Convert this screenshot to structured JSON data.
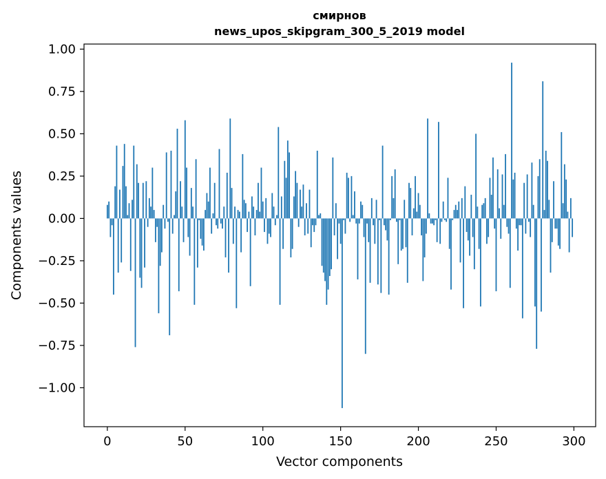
{
  "chart_data": {
    "type": "bar",
    "title_line1": "смирнов",
    "title_line2": "news_upos_skipgram_300_5_2019 model",
    "xlabel": "Vector components",
    "ylabel": "Components values",
    "xlim": [
      -15,
      314
    ],
    "ylim": [
      -1.23,
      1.03
    ],
    "xticks": [
      0,
      50,
      100,
      150,
      200,
      250,
      300
    ],
    "xtick_labels": [
      "0",
      "50",
      "100",
      "150",
      "200",
      "250",
      "300"
    ],
    "yticks": [
      1.0,
      0.75,
      0.5,
      0.25,
      0.0,
      -0.25,
      -0.5,
      -0.75,
      -1.0
    ],
    "ytick_labels": [
      "1.00",
      "0.75",
      "0.50",
      "0.25",
      "0.00",
      "−0.25",
      "−0.50",
      "−0.75",
      "−1.00"
    ],
    "bar_color": "#1f77b4",
    "grid": false,
    "x_start": 0,
    "values": [
      0.08,
      0.1,
      -0.11,
      -0.04,
      -0.45,
      0.19,
      0.43,
      -0.32,
      0.17,
      -0.26,
      0.31,
      0.44,
      0.19,
      0.02,
      0.09,
      -0.31,
      0.11,
      0.43,
      -0.76,
      0.32,
      0.21,
      -0.35,
      -0.41,
      0.21,
      -0.29,
      0.22,
      -0.05,
      0.12,
      0.07,
      0.3,
      0.05,
      -0.14,
      -0.05,
      -0.56,
      -0.28,
      -0.2,
      0.08,
      -0.06,
      0.39,
      -0.02,
      -0.69,
      0.4,
      -0.09,
      0.02,
      0.16,
      0.53,
      -0.43,
      0.22,
      0.07,
      -0.14,
      0.58,
      0.3,
      -0.11,
      -0.22,
      0.18,
      0.07,
      -0.51,
      0.35,
      -0.29,
      -0.01,
      -0.12,
      -0.16,
      -0.19,
      0.05,
      0.15,
      0.1,
      0.3,
      -0.09,
      0.03,
      0.21,
      -0.04,
      -0.06,
      0.41,
      -0.03,
      -0.06,
      0.07,
      -0.23,
      0.27,
      -0.32,
      0.59,
      0.18,
      -0.15,
      0.07,
      -0.53,
      0.05,
      0.04,
      -0.2,
      0.38,
      0.11,
      0.09,
      -0.08,
      0.04,
      -0.4,
      0.13,
      0.07,
      -0.1,
      0.05,
      0.21,
      0.04,
      0.3,
      0.1,
      -0.08,
      0.12,
      -0.15,
      -0.09,
      -0.11,
      0.15,
      0.07,
      -0.04,
      0.02,
      0.54,
      -0.51,
      0.13,
      -0.18,
      0.34,
      0.24,
      0.46,
      0.39,
      -0.23,
      -0.18,
      0.13,
      0.28,
      0.21,
      -0.05,
      0.17,
      0.07,
      0.2,
      -0.1,
      0.09,
      -0.09,
      0.17,
      -0.17,
      -0.04,
      -0.08,
      -0.04,
      0.4,
      0.02,
      0.03,
      -0.28,
      -0.32,
      -0.37,
      -0.51,
      -0.42,
      -0.34,
      -0.3,
      0.36,
      -0.1,
      0.09,
      -0.24,
      -0.03,
      -0.15,
      -1.12,
      -0.01,
      -0.09,
      0.27,
      0.24,
      -0.02,
      0.25,
      0.02,
      0.16,
      -0.03,
      -0.36,
      -0.03,
      0.1,
      0.08,
      -0.11,
      -0.8,
      -0.03,
      -0.14,
      -0.38,
      0.12,
      -0.04,
      -0.15,
      0.11,
      -0.39,
      -0.01,
      -0.44,
      0.43,
      -0.04,
      -0.07,
      -0.13,
      -0.45,
      -0.01,
      0.25,
      0.12,
      0.29,
      -0.02,
      -0.27,
      -0.01,
      -0.19,
      -0.18,
      0.11,
      -0.17,
      -0.38,
      0.21,
      0.18,
      -0.1,
      0.06,
      0.25,
      0.04,
      0.15,
      0.08,
      -0.1,
      -0.37,
      -0.23,
      -0.09,
      0.59,
      0.03,
      -0.03,
      -0.03,
      -0.04,
      -0.01,
      -0.14,
      0.57,
      -0.15,
      -0.02,
      0.1,
      -0.01,
      -0.02,
      0.24,
      -0.18,
      -0.42,
      -0.01,
      0.05,
      0.08,
      0.05,
      0.1,
      -0.26,
      0.12,
      -0.53,
      0.19,
      -0.08,
      -0.13,
      -0.22,
      0.14,
      -0.11,
      -0.3,
      0.5,
      0.07,
      -0.18,
      -0.52,
      0.08,
      0.09,
      0.12,
      -0.15,
      -0.11,
      0.24,
      0.14,
      0.36,
      -0.06,
      -0.43,
      0.29,
      0.06,
      -0.12,
      0.26,
      0.08,
      0.38,
      -0.05,
      -0.09,
      -0.41,
      0.92,
      0.23,
      0.27,
      -0.06,
      -0.19,
      -0.04,
      -0.04,
      -0.59,
      0.21,
      -0.09,
      0.26,
      -0.02,
      -0.11,
      0.33,
      0.08,
      -0.52,
      -0.77,
      0.25,
      0.35,
      -0.55,
      0.81,
      0.05,
      0.4,
      0.34,
      0.11,
      -0.32,
      -0.14,
      0.22,
      -0.06,
      -0.06,
      -0.16,
      -0.18,
      0.51,
      0.09,
      0.32,
      0.23,
      0.04,
      -0.2,
      0.12,
      -0.11
    ]
  }
}
